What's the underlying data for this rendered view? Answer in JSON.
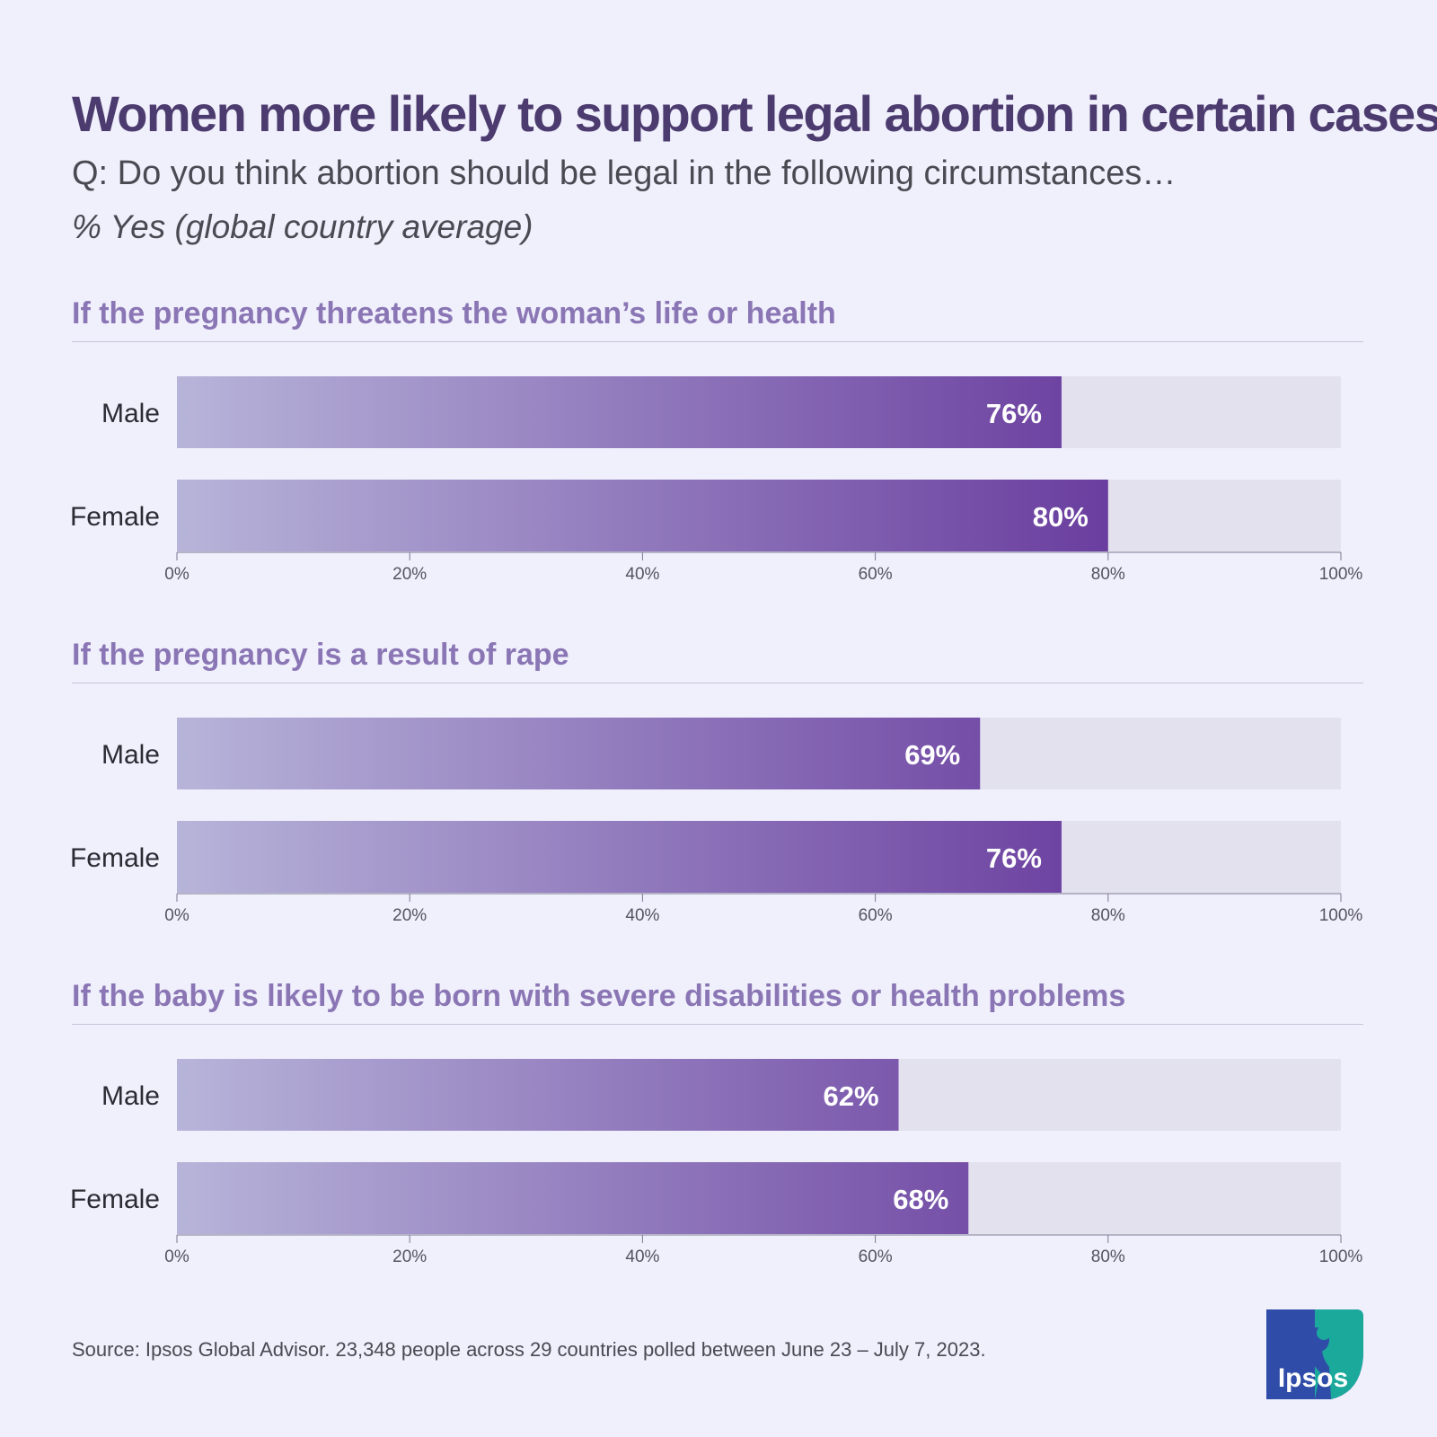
{
  "title": "Women more likely to support legal abortion in certain cases",
  "question": "Q: Do you think abortion should be legal in the following circumstances…",
  "measure": "% Yes (global country average)",
  "footer": "Source: Ipsos Global Advisor. 23,348 people across 29 countries polled between June 23 – July 7, 2023.",
  "logo": {
    "text": "Ipsos",
    "icon": "ipsos-logo-icon"
  },
  "colors": {
    "bar_start": "#B7B4D9",
    "bar_end": "#6A3E9F",
    "track": "#E3E1EE",
    "panel_title": "#8A76B4",
    "title": "#4C3B6E"
  },
  "chart_data": [
    {
      "type": "bar",
      "orientation": "horizontal",
      "title": "If the pregnancy threatens the woman’s life or health",
      "categories": [
        "Male",
        "Female"
      ],
      "values": [
        76,
        80
      ],
      "value_labels": [
        "76%",
        "80%"
      ],
      "xlim": [
        0,
        100
      ],
      "xticks": [
        "0%",
        "20%",
        "40%",
        "60%",
        "80%",
        "100%"
      ]
    },
    {
      "type": "bar",
      "orientation": "horizontal",
      "title": "If the pregnancy is a result of rape",
      "categories": [
        "Male",
        "Female"
      ],
      "values": [
        69,
        76
      ],
      "value_labels": [
        "69%",
        "76%"
      ],
      "xlim": [
        0,
        100
      ],
      "xticks": [
        "0%",
        "20%",
        "40%",
        "60%",
        "80%",
        "100%"
      ]
    },
    {
      "type": "bar",
      "orientation": "horizontal",
      "title": "If the baby is likely to be born with severe disabilities or health problems",
      "categories": [
        "Male",
        "Female"
      ],
      "values": [
        62,
        68
      ],
      "value_labels": [
        "62%",
        "68%"
      ],
      "xlim": [
        0,
        100
      ],
      "xticks": [
        "0%",
        "20%",
        "40%",
        "60%",
        "80%",
        "100%"
      ]
    }
  ]
}
